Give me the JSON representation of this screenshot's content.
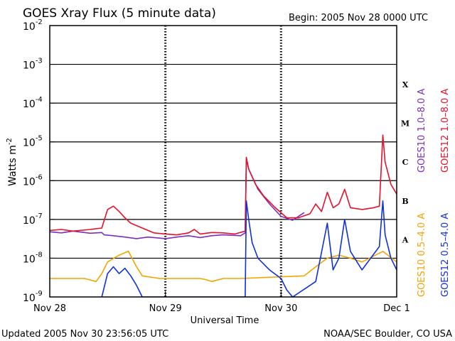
{
  "chart_data": {
    "type": "line",
    "title": "GOES Xray Flux (5 minute data)",
    "begin_label": "Begin:  2005 Nov 28 0000 UTC",
    "xlabel": "Universal Time",
    "ylabel": "Watts m",
    "ylabel_sup": "-2",
    "x_ticks": [
      "Nov 28",
      "Nov 29",
      "Nov 30",
      "Dec 1"
    ],
    "xlim_days": [
      0,
      3
    ],
    "y_scale": "log",
    "ylim": [
      1e-09,
      0.01
    ],
    "y_ticks": [
      {
        "base": "10",
        "exp": "-2"
      },
      {
        "base": "10",
        "exp": "-3"
      },
      {
        "base": "10",
        "exp": "-4"
      },
      {
        "base": "10",
        "exp": "-5"
      },
      {
        "base": "10",
        "exp": "-6"
      },
      {
        "base": "10",
        "exp": "-7"
      },
      {
        "base": "10",
        "exp": "-8"
      },
      {
        "base": "10",
        "exp": "-9"
      }
    ],
    "flare_classes": [
      {
        "label": "X",
        "flux": 0.0003
      },
      {
        "label": "M",
        "flux": 3e-05
      },
      {
        "label": "C",
        "flux": 3e-06
      },
      {
        "label": "B",
        "flux": 3e-07
      },
      {
        "label": "A",
        "flux": 3e-08
      }
    ],
    "grid": true,
    "legend_placement": "right, rotated",
    "series": [
      {
        "name": "GOES10 1.0–8.0 A",
        "color": "#7b2fbf",
        "points": [
          [
            0.0,
            4.8e-08
          ],
          [
            0.1,
            4.5e-08
          ],
          [
            0.2,
            5e-08
          ],
          [
            0.35,
            4.4e-08
          ],
          [
            0.45,
            4.6e-08
          ],
          [
            0.47,
            4e-08
          ],
          [
            0.55,
            3.8e-08
          ],
          [
            0.65,
            3.5e-08
          ],
          [
            0.75,
            3.2e-08
          ],
          [
            0.85,
            3.5e-08
          ],
          [
            1.0,
            3.2e-08
          ],
          [
            1.1,
            3.5e-08
          ],
          [
            1.2,
            3.8e-08
          ],
          [
            1.3,
            3.4e-08
          ],
          [
            1.4,
            3.8e-08
          ],
          [
            1.5,
            4e-08
          ],
          [
            1.65,
            3.8e-08
          ],
          [
            1.69,
            4.5e-08
          ],
          [
            1.7,
            3.5e-06
          ],
          [
            1.72,
            2e-06
          ],
          [
            1.8,
            6e-07
          ],
          [
            1.9,
            2.5e-07
          ],
          [
            2.0,
            1.2e-07
          ],
          [
            2.1,
            9.5e-08
          ],
          [
            2.2,
            1.5e-07
          ]
        ]
      },
      {
        "name": "GOES12 1.0–8.0 A",
        "color": "#e8102a",
        "points": [
          [
            0.0,
            5.2e-08
          ],
          [
            0.1,
            5.5e-08
          ],
          [
            0.2,
            5e-08
          ],
          [
            0.35,
            5.5e-08
          ],
          [
            0.45,
            6e-08
          ],
          [
            0.5,
            1.8e-07
          ],
          [
            0.55,
            2.2e-07
          ],
          [
            0.6,
            1.6e-07
          ],
          [
            0.65,
            1.1e-07
          ],
          [
            0.7,
            8e-08
          ],
          [
            0.8,
            6e-08
          ],
          [
            0.9,
            4.5e-08
          ],
          [
            1.0,
            4.2e-08
          ],
          [
            1.1,
            4e-08
          ],
          [
            1.2,
            4.5e-08
          ],
          [
            1.25,
            5.5e-08
          ],
          [
            1.3,
            4.2e-08
          ],
          [
            1.4,
            4.6e-08
          ],
          [
            1.5,
            4.5e-08
          ],
          [
            1.6,
            4.2e-08
          ],
          [
            1.69,
            5e-08
          ],
          [
            1.7,
            4e-06
          ],
          [
            1.72,
            2e-06
          ],
          [
            1.78,
            8e-07
          ],
          [
            1.85,
            4e-07
          ],
          [
            1.95,
            2e-07
          ],
          [
            2.05,
            1.1e-07
          ],
          [
            2.15,
            1.1e-07
          ],
          [
            2.25,
            1.4e-07
          ],
          [
            2.3,
            2.5e-07
          ],
          [
            2.35,
            1.6e-07
          ],
          [
            2.4,
            5e-07
          ],
          [
            2.45,
            2e-07
          ],
          [
            2.5,
            2.5e-07
          ],
          [
            2.55,
            6e-07
          ],
          [
            2.6,
            2e-07
          ],
          [
            2.7,
            1.8e-07
          ],
          [
            2.8,
            2e-07
          ],
          [
            2.85,
            2.2e-07
          ],
          [
            2.88,
            1.5e-05
          ],
          [
            2.9,
            3e-06
          ],
          [
            2.95,
            8e-07
          ],
          [
            3.0,
            4.5e-07
          ]
        ]
      },
      {
        "name": "GOES10 0.5–4.0 A",
        "color": "#f5a300",
        "points": [
          [
            0.0,
            3e-09
          ],
          [
            0.3,
            3e-09
          ],
          [
            0.4,
            2.5e-09
          ],
          [
            0.45,
            4e-09
          ],
          [
            0.5,
            8e-09
          ],
          [
            0.6,
            1.2e-08
          ],
          [
            0.68,
            1.5e-08
          ],
          [
            0.75,
            6e-09
          ],
          [
            0.8,
            3.5e-09
          ],
          [
            0.95,
            3e-09
          ],
          [
            1.3,
            3e-09
          ],
          [
            1.35,
            2.8e-09
          ],
          [
            1.4,
            2.5e-09
          ],
          [
            1.5,
            3e-09
          ],
          [
            1.65,
            3e-09
          ],
          [
            2.2,
            3.5e-09
          ],
          [
            2.3,
            6e-09
          ],
          [
            2.4,
            1e-08
          ],
          [
            2.5,
            1.2e-08
          ],
          [
            2.6,
            1e-08
          ],
          [
            2.7,
            8e-09
          ],
          [
            2.88,
            1.5e-08
          ],
          [
            3.0,
            8e-09
          ]
        ]
      },
      {
        "name": "GOES12 0.5–4.0 A",
        "color": "#1030e0",
        "points": [
          [
            0.45,
            1e-09
          ],
          [
            0.5,
            4e-09
          ],
          [
            0.55,
            6e-09
          ],
          [
            0.6,
            4e-09
          ],
          [
            0.65,
            5.5e-09
          ],
          [
            0.7,
            3.5e-09
          ],
          [
            0.75,
            2e-09
          ],
          [
            0.8,
            1e-09
          ],
          [
            1.69,
            1e-09
          ],
          [
            1.7,
            3e-07
          ],
          [
            1.72,
            1e-07
          ],
          [
            1.75,
            2.5e-08
          ],
          [
            1.8,
            1e-08
          ],
          [
            1.9,
            5e-09
          ],
          [
            2.0,
            3e-09
          ],
          [
            2.05,
            1.5e-09
          ],
          [
            2.1,
            1e-09
          ],
          [
            2.3,
            2.5e-09
          ],
          [
            2.4,
            8e-08
          ],
          [
            2.45,
            5e-09
          ],
          [
            2.5,
            1e-08
          ],
          [
            2.55,
            1e-07
          ],
          [
            2.6,
            1.5e-08
          ],
          [
            2.7,
            5e-09
          ],
          [
            2.85,
            2e-08
          ],
          [
            2.88,
            3e-07
          ],
          [
            2.9,
            4e-08
          ],
          [
            2.95,
            1e-08
          ],
          [
            3.0,
            5e-09
          ]
        ]
      }
    ]
  },
  "footer": {
    "updated": "Updated 2005 Nov 30 23:56:05 UTC",
    "source": "NOAA/SEC Boulder, CO USA"
  }
}
